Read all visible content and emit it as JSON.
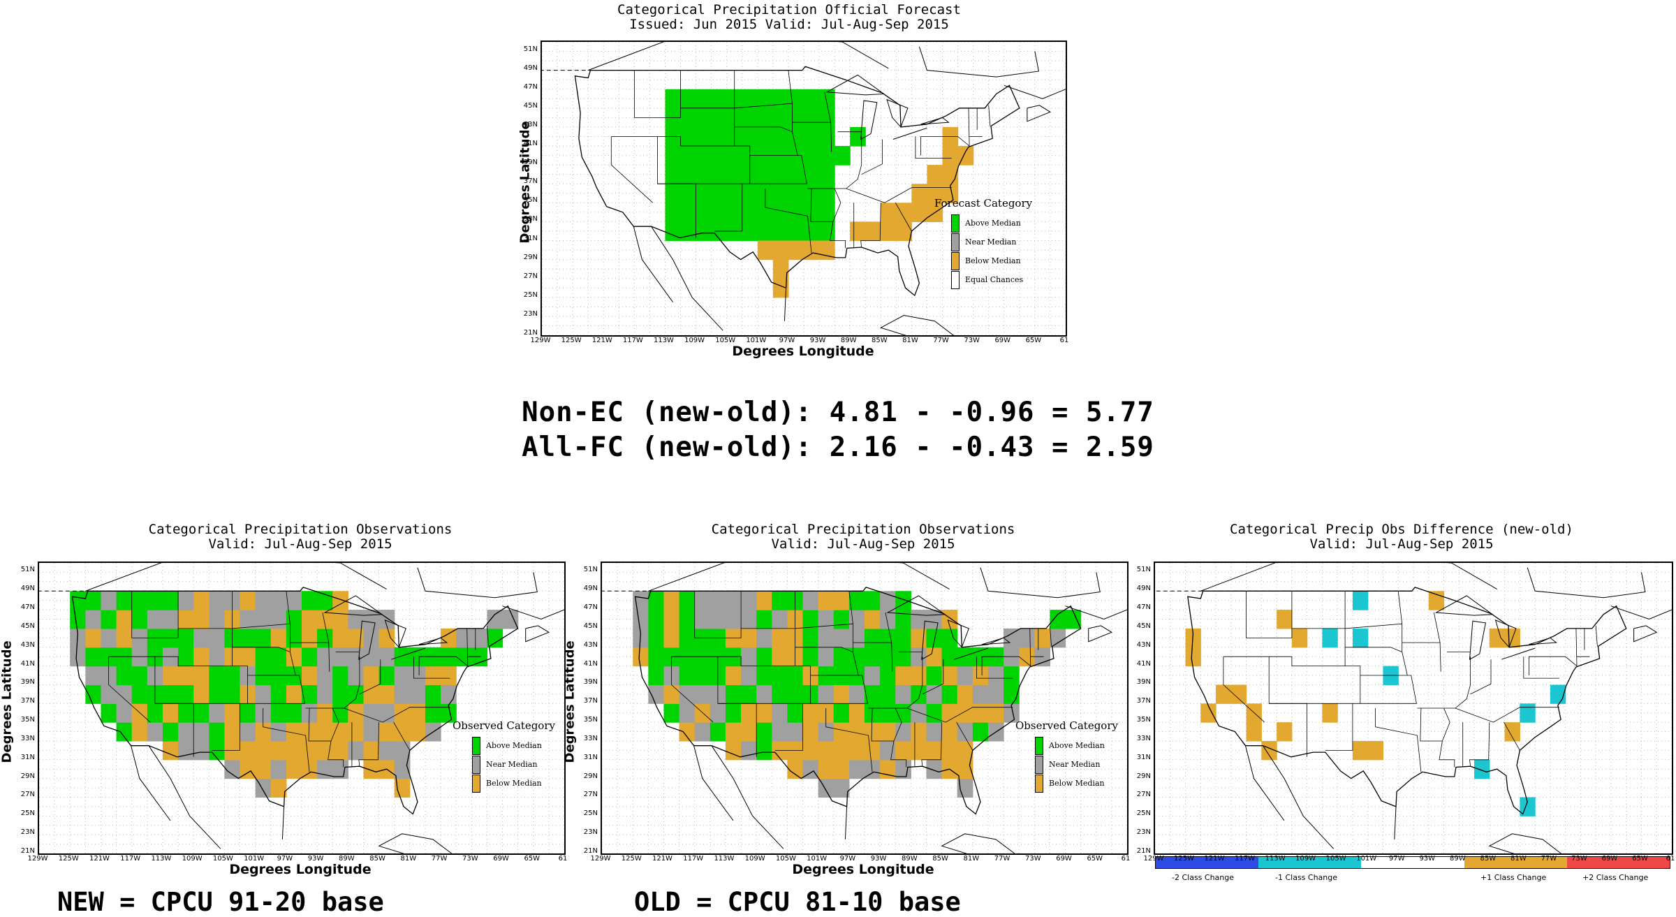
{
  "colors": {
    "above": "#00d400",
    "near": "#a0a0a0",
    "below": "#e2a830",
    "eq": "#ffffff",
    "minus2": "#2f4be6",
    "minus1": "#1cc6d0",
    "plus1": "#e2a830",
    "plus2": "#f04848"
  },
  "x_ticks": [
    "129W",
    "125W",
    "121W",
    "117W",
    "113W",
    "109W",
    "105W",
    "101W",
    "97W",
    "93W",
    "89W",
    "85W",
    "81W",
    "77W",
    "73W",
    "69W",
    "65W",
    "61"
  ],
  "y_ticks": [
    "51N",
    "49N",
    "47N",
    "45N",
    "43N",
    "41N",
    "39N",
    "37N",
    "35N",
    "33N",
    "31N",
    "29N",
    "27N",
    "25N",
    "23N",
    "21N"
  ],
  "axis": {
    "xlabel": "Degrees Longitude",
    "ylabel": "Degrees Latitude"
  },
  "forecast": {
    "title": "Categorical Precipitation Official Forecast",
    "subtitle": "Issued: Jun 2015 Valid: Jul-Aug-Sep 2015",
    "legend_title": "Forecast Category",
    "legend": [
      "Above Median",
      "Near Median",
      "Below Median",
      "Equal Chances"
    ]
  },
  "obs_new": {
    "title": "Categorical Precipitation Observations",
    "subtitle": "Valid: Jul-Aug-Sep 2015",
    "legend_title": "Observed Category",
    "legend": [
      "Above Median",
      "Near Median",
      "Below Median"
    ]
  },
  "obs_old": {
    "title": "Categorical Precipitation Observations",
    "subtitle": "Valid: Jul-Aug-Sep 2015",
    "legend_title": "Observed Category",
    "legend": [
      "Above Median",
      "Near Median",
      "Below Median"
    ]
  },
  "diff": {
    "title": "Categorical Precip Obs Difference (new-old)",
    "subtitle": "Valid: Jul-Aug-Sep 2015",
    "colorbar": [
      "-2 Class Change",
      "-1 Class Change",
      "+1 Class Change",
      "+2 Class Change"
    ]
  },
  "stats": {
    "line1": "Non-EC (new-old): 4.81 - -0.96 = 5.77",
    "line2": "All-FC (new-old): 2.16 - -0.43 = 2.59"
  },
  "captions": {
    "new": "NEW = CPCU 91-20 base",
    "old": "OLD = CPCU 81-10 base"
  }
}
